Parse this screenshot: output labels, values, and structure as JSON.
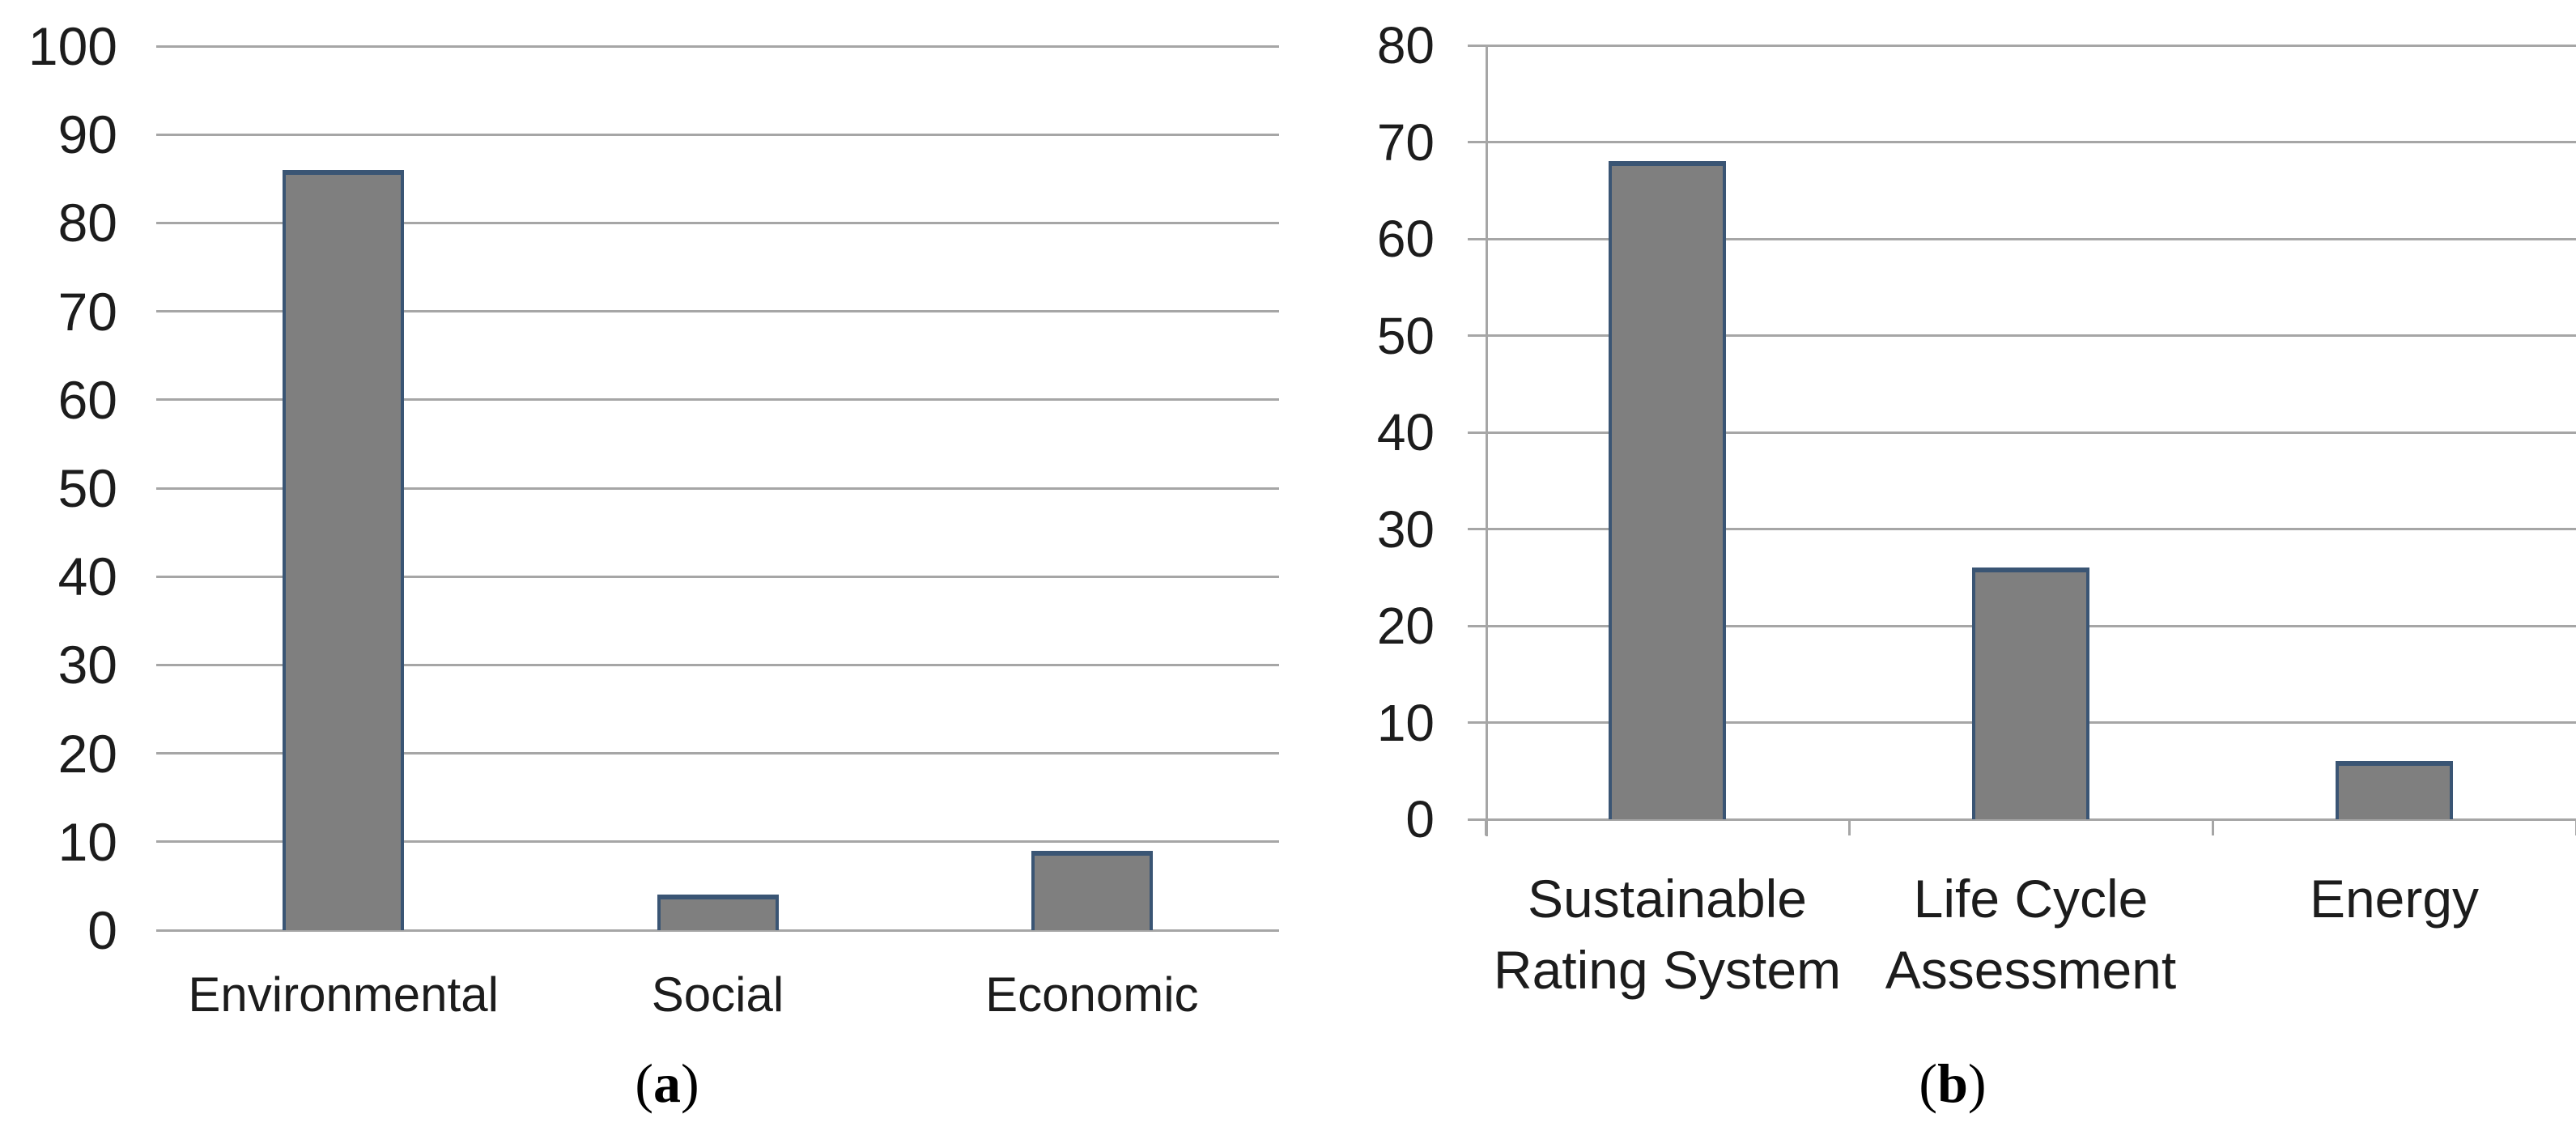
{
  "figure": {
    "captions": {
      "a": "(a)",
      "b": "(b)"
    }
  },
  "colors": {
    "bar_fill": "#7f7f7f",
    "bar_border": "#3a5574",
    "gridline": "#a6a6a6",
    "text": "#1c1c1c"
  },
  "chart_data": [
    {
      "type": "bar",
      "panel": "a",
      "caption": "(a)",
      "title": "",
      "xlabel": "",
      "ylabel": "",
      "categories": [
        "Environmental",
        "Social",
        "Economic"
      ],
      "label_lines": [
        [
          "Environmental"
        ],
        [
          "Social"
        ],
        [
          "Economic"
        ]
      ],
      "values": [
        86,
        4,
        9
      ],
      "ylim": [
        0,
        100
      ],
      "yticks": [
        0,
        10,
        20,
        30,
        40,
        50,
        60,
        70,
        80,
        90,
        100
      ],
      "grid": "horizontal",
      "legend": "none",
      "bar_color": "#7f7f7f"
    },
    {
      "type": "bar",
      "panel": "b",
      "caption": "(b)",
      "title": "",
      "xlabel": "",
      "ylabel": "",
      "categories": [
        "Sustainable Rating System",
        "Life Cycle Assessment",
        "Energy"
      ],
      "label_lines": [
        [
          "Sustainable",
          "Rating System"
        ],
        [
          "Life Cycle",
          "Assessment"
        ],
        [
          "Energy"
        ]
      ],
      "values": [
        68,
        26,
        6
      ],
      "ylim": [
        0,
        80
      ],
      "yticks": [
        0,
        10,
        20,
        30,
        40,
        50,
        60,
        70,
        80
      ],
      "grid": "horizontal",
      "legend": "none",
      "bar_color": "#7f7f7f"
    }
  ]
}
